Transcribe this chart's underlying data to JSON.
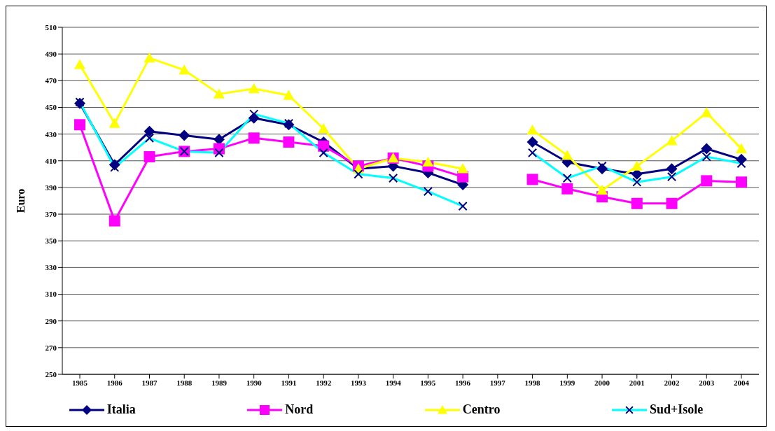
{
  "chart_data": {
    "type": "line",
    "ylabel": "Euro",
    "categories": [
      "1985",
      "1986",
      "1987",
      "1988",
      "1989",
      "1990",
      "1991",
      "1992",
      "1993",
      "1994",
      "1995",
      "1996",
      "1997",
      "1998",
      "1999",
      "2000",
      "2001",
      "2002",
      "2003",
      "2004"
    ],
    "series": [
      {
        "name": "Italia",
        "color": "#000080",
        "marker": "diamond",
        "values": [
          453,
          407,
          432,
          429,
          426,
          442,
          437,
          424,
          404,
          406,
          401,
          392,
          null,
          424,
          409,
          404,
          400,
          404,
          419,
          411
        ]
      },
      {
        "name": "Nord",
        "color": "#ff00ff",
        "marker": "square",
        "values": [
          437,
          365,
          413,
          417,
          419,
          427,
          424,
          421,
          406,
          412,
          406,
          398,
          null,
          396,
          389,
          383,
          378,
          378,
          395,
          394
        ]
      },
      {
        "name": "Centro",
        "color": "#ffff00",
        "marker": "triangle",
        "values": [
          482,
          438,
          487,
          478,
          460,
          464,
          459,
          434,
          404,
          412,
          409,
          404,
          null,
          433,
          414,
          388,
          406,
          425,
          446,
          419
        ]
      },
      {
        "name": "Sud+Isole",
        "color": "#00ffff",
        "marker": "cross",
        "values": [
          454,
          405,
          427,
          417,
          416,
          445,
          438,
          416,
          400,
          397,
          387,
          376,
          null,
          416,
          397,
          406,
          394,
          398,
          413,
          408
        ]
      }
    ],
    "ylim": [
      250,
      510
    ],
    "yticks": [
      250,
      270,
      290,
      310,
      330,
      350,
      370,
      390,
      410,
      430,
      450,
      470,
      490,
      510
    ],
    "grid": "y",
    "legend": "bottom",
    "line_style": "solid"
  }
}
